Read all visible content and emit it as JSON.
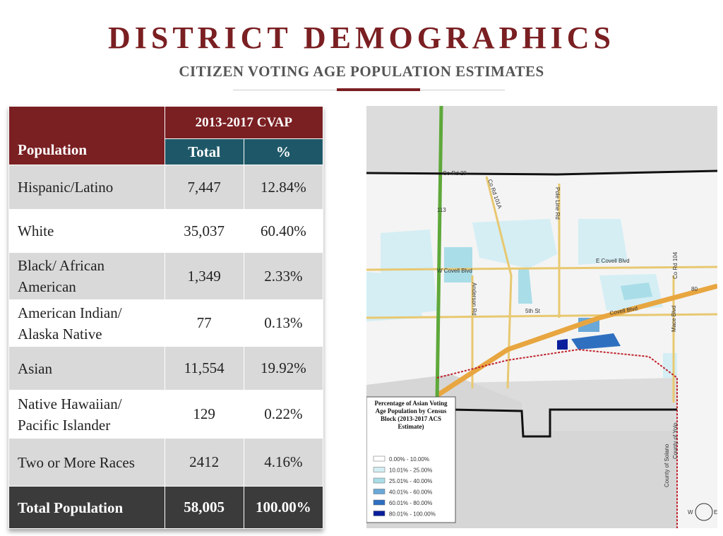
{
  "header": {
    "title": "DISTRICT DEMOGRAPHICS",
    "subtitle": "CITIZEN VOTING AGE POPULATION ESTIMATES"
  },
  "table": {
    "row_header": "Population",
    "group_header": "2013-2017 CVAP",
    "columns": [
      "Total",
      "%"
    ],
    "rows": [
      [
        "Hispanic/Latino",
        "7,447",
        "12.84%"
      ],
      [
        "White",
        "35,037",
        "60.40%"
      ],
      [
        "Black/ African American",
        "1,349",
        "2.33%"
      ],
      [
        "American Indian/ Alaska Native",
        "77",
        "0.13%"
      ],
      [
        "Asian",
        "11,554",
        "19.92%"
      ],
      [
        "Native Hawaiian/ Pacific Islander",
        "129",
        "0.22%"
      ],
      [
        "Two or More Races",
        "2412",
        "4.16%"
      ]
    ],
    "total": [
      "Total Population",
      "58,005",
      "100.00%"
    ]
  },
  "map": {
    "roads": [
      "Co Rd 29",
      "113",
      "Co Rd 101A",
      "Pole Line Rd",
      "W Covell Blvd",
      "E Covell Blvd",
      "Anderson Rd",
      "5th St",
      "Covell Blvd",
      "Co Rd 104",
      "80",
      "Mace Blvd",
      "County of Solano",
      "County of Yolo"
    ],
    "compass": [
      "W",
      "E"
    ],
    "legend": {
      "title": "Percentage of Asian Voting Age Population by Census Block (2013-2017 ACS Estimate)",
      "entries": [
        {
          "label": "0.00% - 10.00%",
          "color": "#ffffff"
        },
        {
          "label": "10.01% - 25.00%",
          "color": "#d4eef4"
        },
        {
          "label": "25.01% - 40.00%",
          "color": "#a9dde8"
        },
        {
          "label": "40.01% - 60.00%",
          "color": "#6aa8d8"
        },
        {
          "label": "60.01% - 80.00%",
          "color": "#2f6fc0"
        },
        {
          "label": "80.01% - 100.00%",
          "color": "#0a1f9c"
        }
      ]
    }
  }
}
